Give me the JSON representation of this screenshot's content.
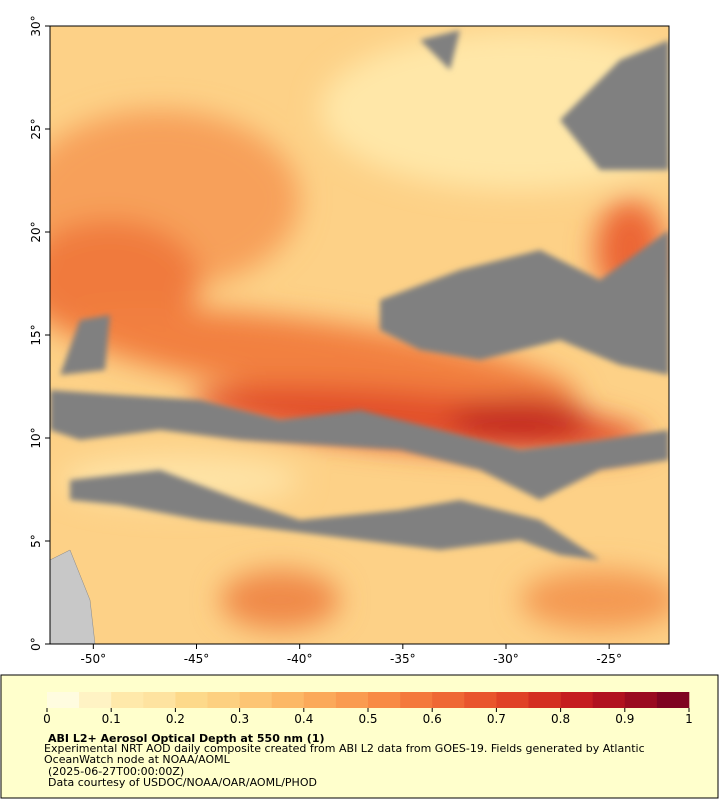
{
  "chart_data": {
    "type": "map",
    "title": "ABI L2+ Aerosol Optical Depth at 550 nm (1)",
    "description": "Experimental NRT AOD daily composite created from ABI L2 data from GOES-19. Fields generated by Atlantic OceanWatch node at NOAA/AOML",
    "time": "(2025-06-27T00:00:00Z)",
    "credit": "Data courtesy of USDOC/NOAA/OAR/AOML/PHOD",
    "xlim": [
      -52.1,
      -22.1
    ],
    "ylim": [
      0,
      30
    ],
    "xticks": [
      {
        "value": -50,
        "label": "-50°"
      },
      {
        "value": -45,
        "label": "-45°"
      },
      {
        "value": -40,
        "label": "-40°"
      },
      {
        "value": -35,
        "label": "-35°"
      },
      {
        "value": -30,
        "label": "-30°"
      },
      {
        "value": -25,
        "label": "-25°"
      }
    ],
    "yticks": [
      {
        "value": 0,
        "label": "0°"
      },
      {
        "value": 5,
        "label": "5°"
      },
      {
        "value": 10,
        "label": "10°"
      },
      {
        "value": 15,
        "label": "15°"
      },
      {
        "value": 20,
        "label": "20°"
      },
      {
        "value": 25,
        "label": "25°"
      },
      {
        "value": 30,
        "label": "30°"
      }
    ],
    "colorbar": {
      "range": [
        0,
        1
      ],
      "ticks": [
        0,
        0.1,
        0.2,
        0.3,
        0.4,
        0.5,
        0.6,
        0.7,
        0.8,
        0.9,
        1
      ],
      "colors": [
        "#fffce0",
        "#fff3c4",
        "#ffe9aa",
        "#fee3a0",
        "#fdd98a",
        "#fdd080",
        "#fdc574",
        "#fcb866",
        "#fba95a",
        "#fa9b50",
        "#f88a45",
        "#f4793c",
        "#ef6834",
        "#e9552c",
        "#e04226",
        "#d42f22",
        "#c51d20",
        "#b1121f",
        "#9a0b20",
        "#7f0421"
      ]
    }
  }
}
